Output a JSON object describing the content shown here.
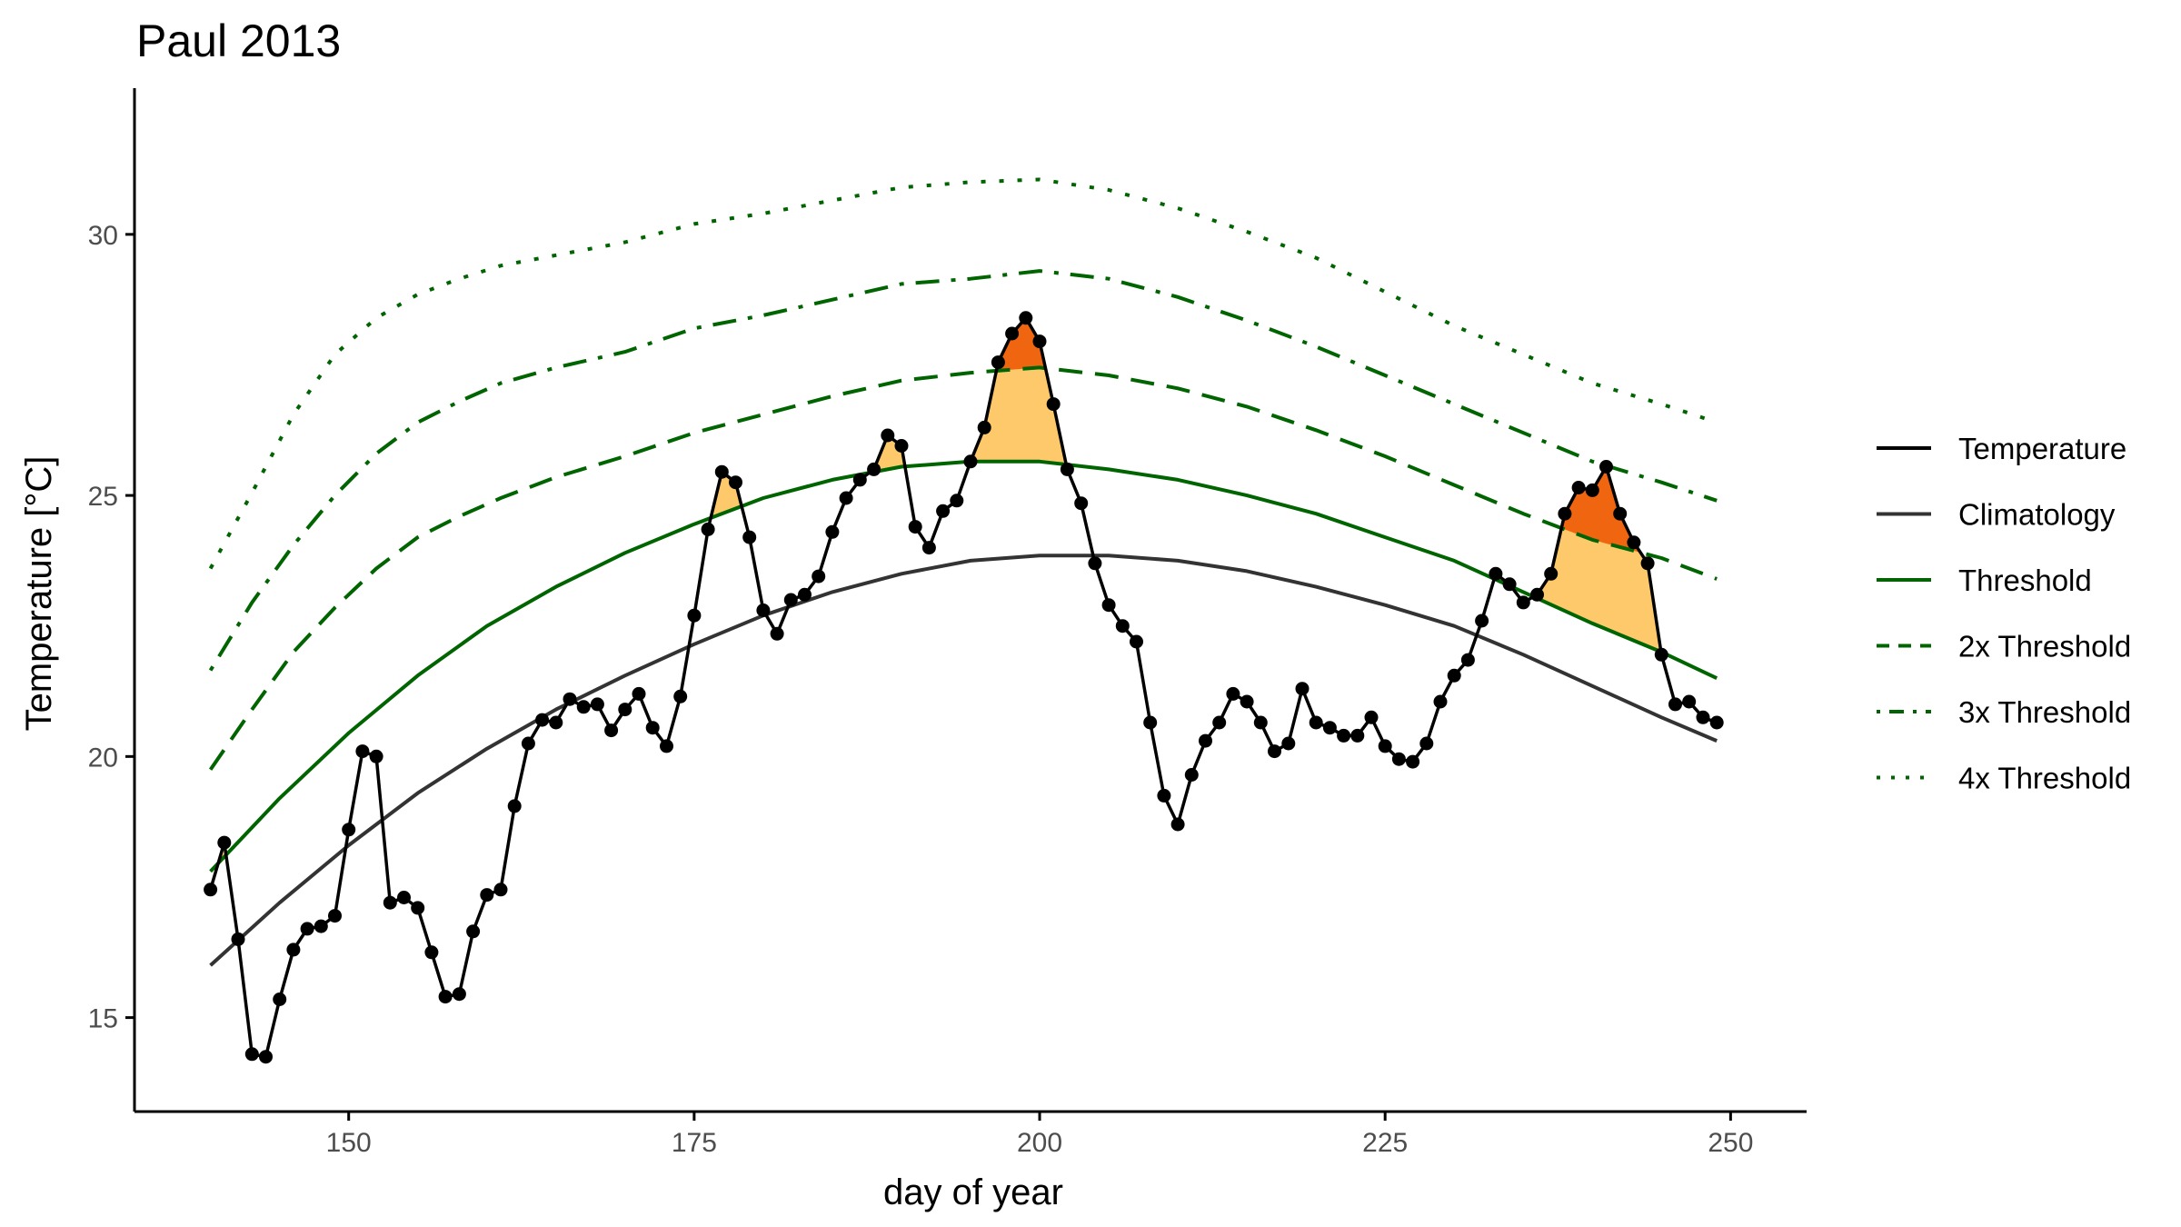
{
  "chart_data": {
    "type": "line",
    "title": "Paul 2013",
    "xlabel": "day of year",
    "ylabel": "Temperature [°C]",
    "xlim": [
      134.5,
      255.5
    ],
    "ylim": [
      13.2,
      32.8
    ],
    "xticks": [
      150,
      175,
      200,
      225,
      250
    ],
    "yticks": [
      15,
      20,
      25,
      30
    ],
    "grid": false,
    "legend_position": "right",
    "colors": {
      "temperature": "#000000",
      "climatology": "#333333",
      "threshold": "#006400",
      "fill_above_threshold": "#fdc96b",
      "fill_above_2x": "#f0650f",
      "axis": "#000000",
      "tick_label": "#4d4d4d"
    },
    "legend": [
      {
        "key": "temperature",
        "label": "Temperature",
        "style": "solid",
        "color": "#000000"
      },
      {
        "key": "climatology",
        "label": "Climatology",
        "style": "solid",
        "color": "#333333"
      },
      {
        "key": "threshold",
        "label": "Threshold",
        "style": "solid",
        "color": "#006400"
      },
      {
        "key": "thresh2x",
        "label": "2x Threshold",
        "style": "dashed",
        "color": "#006400"
      },
      {
        "key": "thresh3x",
        "label": "3x Threshold",
        "style": "dotdash",
        "color": "#006400"
      },
      {
        "key": "thresh4x",
        "label": "4x Threshold",
        "style": "dotted",
        "color": "#006400"
      }
    ],
    "series": {
      "temperature": {
        "x": [
          140,
          141,
          142,
          143,
          144,
          145,
          146,
          147,
          148,
          149,
          150,
          151,
          152,
          153,
          154,
          155,
          156,
          157,
          158,
          159,
          160,
          161,
          162,
          163,
          164,
          165,
          166,
          167,
          168,
          169,
          170,
          171,
          172,
          173,
          174,
          175,
          176,
          177,
          178,
          179,
          180,
          181,
          182,
          183,
          184,
          185,
          186,
          187,
          188,
          189,
          190,
          191,
          192,
          193,
          194,
          195,
          196,
          197,
          198,
          199,
          200,
          201,
          202,
          203,
          204,
          205,
          206,
          207,
          208,
          209,
          210,
          211,
          212,
          213,
          214,
          215,
          216,
          217,
          218,
          219,
          220,
          221,
          222,
          223,
          224,
          225,
          226,
          227,
          228,
          229,
          230,
          231,
          232,
          233,
          234,
          235,
          236,
          237,
          238,
          239,
          240,
          241,
          242,
          243,
          244,
          245,
          246,
          247,
          248,
          249
        ],
        "y": [
          17.45,
          18.35,
          16.5,
          14.3,
          14.25,
          15.35,
          16.3,
          16.7,
          16.75,
          16.95,
          18.6,
          20.1,
          20.0,
          17.2,
          17.3,
          17.1,
          16.25,
          15.4,
          15.45,
          16.65,
          17.35,
          17.45,
          19.05,
          20.25,
          20.7,
          20.65,
          21.1,
          20.95,
          21.0,
          20.5,
          20.9,
          21.2,
          20.55,
          20.2,
          21.15,
          22.7,
          24.35,
          25.45,
          25.25,
          24.2,
          22.8,
          22.35,
          23.0,
          23.1,
          23.45,
          24.3,
          24.95,
          25.3,
          25.5,
          26.15,
          25.95,
          24.4,
          24.0,
          24.7,
          24.9,
          25.65,
          26.3,
          27.55,
          28.1,
          28.4,
          27.95,
          26.75,
          25.5,
          24.85,
          23.7,
          22.9,
          22.5,
          22.2,
          20.65,
          19.25,
          18.7,
          19.65,
          20.3,
          20.65,
          21.2,
          21.05,
          20.65,
          20.1,
          20.25,
          21.3,
          20.65,
          20.55,
          20.4,
          20.4,
          20.75,
          20.2,
          19.95,
          19.9,
          20.25,
          21.05,
          21.55,
          21.85,
          22.6,
          23.5,
          23.3,
          22.95,
          23.1,
          23.5,
          24.65,
          25.15,
          25.1,
          25.55,
          24.65,
          24.1,
          23.7,
          21.95,
          21.0,
          21.05,
          20.75,
          20.65
        ]
      },
      "climatology": {
        "x": [
          140,
          145,
          150,
          155,
          160,
          165,
          170,
          175,
          180,
          185,
          190,
          195,
          200,
          205,
          210,
          215,
          220,
          225,
          230,
          235,
          240,
          245,
          249
        ],
        "y": [
          16.0,
          17.2,
          18.3,
          19.3,
          20.15,
          20.9,
          21.55,
          22.15,
          22.7,
          23.15,
          23.5,
          23.75,
          23.85,
          23.85,
          23.75,
          23.55,
          23.25,
          22.9,
          22.5,
          21.95,
          21.35,
          20.75,
          20.3
        ]
      },
      "threshold": {
        "x": [
          140,
          145,
          150,
          155,
          160,
          165,
          170,
          175,
          180,
          185,
          190,
          195,
          200,
          205,
          210,
          215,
          220,
          225,
          230,
          235,
          240,
          245,
          249
        ],
        "y": [
          17.8,
          19.2,
          20.45,
          21.55,
          22.5,
          23.25,
          23.9,
          24.45,
          24.95,
          25.3,
          25.55,
          25.65,
          25.65,
          25.5,
          25.3,
          25.0,
          24.65,
          24.2,
          23.75,
          23.15,
          22.55,
          22.0,
          21.5
        ]
      },
      "thresh2x": {
        "x": [
          140,
          143,
          146,
          149,
          152,
          155,
          158,
          161,
          165,
          170,
          175,
          180,
          185,
          190,
          195,
          200,
          205,
          210,
          215,
          220,
          225,
          230,
          235,
          240,
          245,
          249
        ],
        "y": [
          19.75,
          20.9,
          22.0,
          22.85,
          23.6,
          24.2,
          24.6,
          24.95,
          25.35,
          25.75,
          26.2,
          26.55,
          26.9,
          27.2,
          27.35,
          27.45,
          27.3,
          27.05,
          26.7,
          26.25,
          25.75,
          25.2,
          24.65,
          24.15,
          23.8,
          23.4
        ]
      },
      "thresh3x": {
        "x": [
          140,
          143,
          146,
          149,
          152,
          155,
          158,
          161,
          165,
          170,
          175,
          180,
          185,
          190,
          195,
          200,
          205,
          210,
          215,
          220,
          225,
          230,
          235,
          240,
          245,
          249
        ],
        "y": [
          21.65,
          22.95,
          24.05,
          25.0,
          25.8,
          26.4,
          26.8,
          27.15,
          27.45,
          27.75,
          28.2,
          28.45,
          28.75,
          29.05,
          29.15,
          29.3,
          29.15,
          28.8,
          28.35,
          27.85,
          27.3,
          26.75,
          26.2,
          25.65,
          25.25,
          24.9
        ]
      },
      "thresh4x": {
        "x": [
          140,
          143,
          146,
          149,
          152,
          155,
          158,
          161,
          165,
          170,
          175,
          180,
          185,
          190,
          195,
          200,
          205,
          210,
          215,
          220,
          225,
          230,
          235,
          240,
          245,
          249
        ],
        "y": [
          23.6,
          25.05,
          26.55,
          27.7,
          28.4,
          28.85,
          29.15,
          29.4,
          29.6,
          29.85,
          30.2,
          30.4,
          30.65,
          30.9,
          31.0,
          31.05,
          30.85,
          30.5,
          30.05,
          29.55,
          28.9,
          28.25,
          27.7,
          27.15,
          26.75,
          26.4
        ]
      }
    }
  }
}
